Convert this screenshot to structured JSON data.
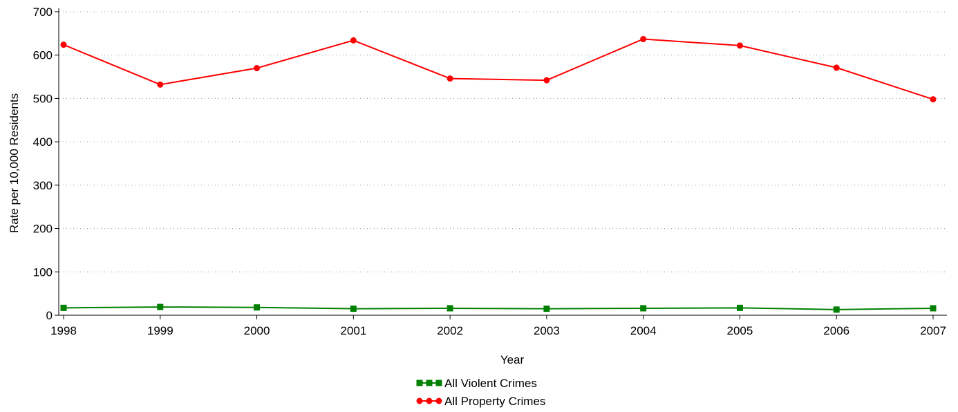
{
  "chart_data": {
    "type": "line",
    "title": "",
    "xlabel": "Year",
    "ylabel": "Rate per 10,000 Residents",
    "x": [
      "1998",
      "1999",
      "2000",
      "2001",
      "2002",
      "2003",
      "2004",
      "2005",
      "2006",
      "2007"
    ],
    "ylim": [
      0,
      700
    ],
    "yticks": [
      0,
      100,
      200,
      300,
      400,
      500,
      600,
      700
    ],
    "grid": "horizontal dotted",
    "legend": "bottom-center",
    "series": [
      {
        "name": "All Violent Crimes",
        "color": "#008000",
        "marker": "square",
        "values": [
          17,
          19,
          18,
          15,
          16,
          15,
          16,
          17,
          13,
          16
        ]
      },
      {
        "name": "All Property Crimes",
        "color": "#ff0000",
        "marker": "circle",
        "values": [
          624,
          532,
          570,
          634,
          546,
          542,
          637,
          622,
          571,
          498
        ]
      }
    ]
  }
}
